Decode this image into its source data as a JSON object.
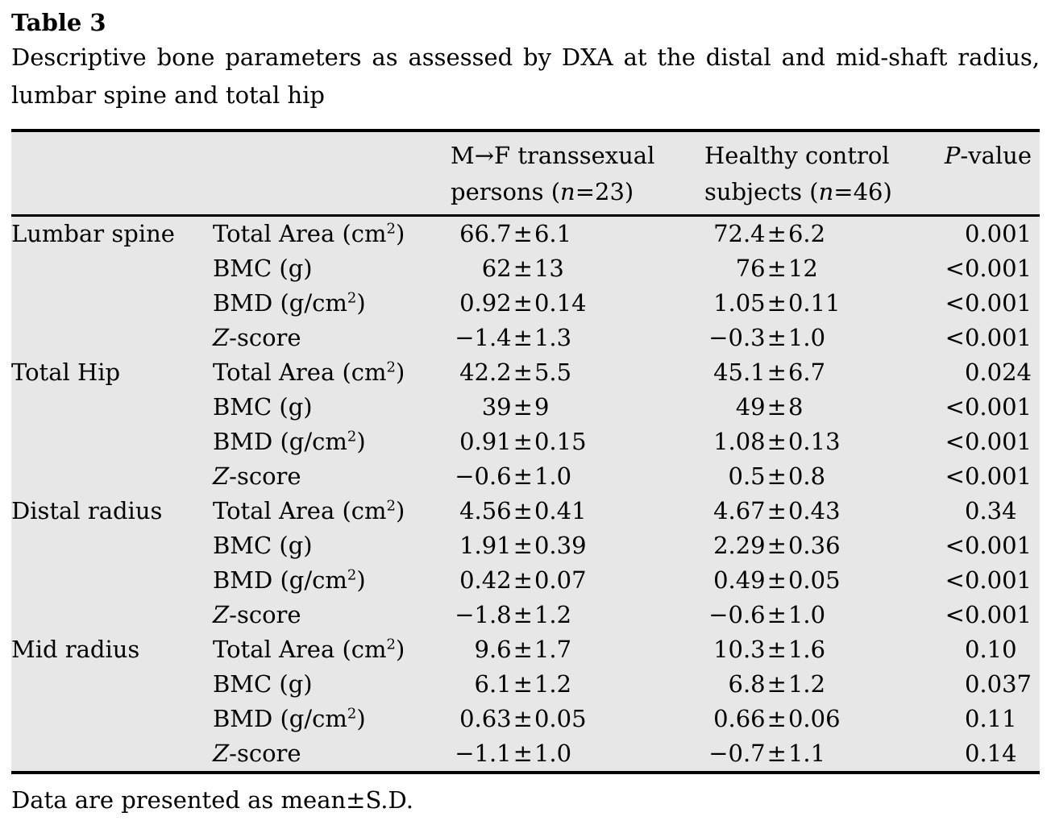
{
  "title": "Table 3",
  "caption": "Descriptive bone parameters as assessed by DXA at the distal and mid-shaft radius, lumbar spine and total hip",
  "footnote": "Data are presented as mean±S.D.",
  "header": {
    "col_mf": {
      "line1": "M→F transsexual",
      "line2_pre": "persons (",
      "line2_n": "n",
      "line2_post": "=23)"
    },
    "col_ctrl": {
      "line1": "Healthy control",
      "line2_pre": "subjects (",
      "line2_n": "n",
      "line2_post": "=46)"
    },
    "col_p": {
      "italic": "P",
      "rest": "-value"
    }
  },
  "rows": [
    {
      "region": "Lumbar spine",
      "param": "Total Area (cm²)",
      "mf": "66.7±6.1",
      "ctrl": "72.4±6.2",
      "p": "0.001"
    },
    {
      "region": "",
      "param": "BMC (g)",
      "mf": "62±13",
      "ctrl": "76±12",
      "p": "<0.001"
    },
    {
      "region": "",
      "param": "BMD (g/cm²)",
      "mf": "0.92±0.14",
      "ctrl": "1.05±0.11",
      "p": "<0.001"
    },
    {
      "region": "",
      "param": "Z-score",
      "mf": "−1.4±1.3",
      "ctrl": "−0.3±1.0",
      "p": "<0.001"
    },
    {
      "region": "Total Hip",
      "param": "Total Area (cm²)",
      "mf": "42.2±5.5",
      "ctrl": "45.1±6.7",
      "p": "0.024"
    },
    {
      "region": "",
      "param": "BMC (g)",
      "mf": "39±9",
      "ctrl": "49±8",
      "p": "<0.001"
    },
    {
      "region": "",
      "param": "BMD (g/cm²)",
      "mf": "0.91±0.15",
      "ctrl": "1.08±0.13",
      "p": "<0.001"
    },
    {
      "region": "",
      "param": "Z-score",
      "mf": "−0.6±1.0",
      "ctrl": "0.5±0.8",
      "p": "<0.001"
    },
    {
      "region": "Distal radius",
      "param": "Total Area (cm²)",
      "mf": "4.56±0.41",
      "ctrl": "4.67±0.43",
      "p": "0.34"
    },
    {
      "region": "",
      "param": "BMC (g)",
      "mf": "1.91±0.39",
      "ctrl": "2.29±0.36",
      "p": "<0.001"
    },
    {
      "region": "",
      "param": "BMD (g/cm²)",
      "mf": "0.42±0.07",
      "ctrl": "0.49±0.05",
      "p": "<0.001"
    },
    {
      "region": "",
      "param": "Z-score",
      "mf": "−1.8±1.2",
      "ctrl": "−0.6±1.0",
      "p": "<0.001"
    },
    {
      "region": "Mid radius",
      "param": "Total Area (cm²)",
      "mf": "9.6±1.7",
      "ctrl": "10.3±1.6",
      "p": "0.10"
    },
    {
      "region": "",
      "param": "BMC (g)",
      "mf": "6.1±1.2",
      "ctrl": "6.8±1.2",
      "p": "0.037"
    },
    {
      "region": "",
      "param": "BMD (g/cm²)",
      "mf": "0.63±0.05",
      "ctrl": "0.66±0.06",
      "p": "0.11"
    },
    {
      "region": "",
      "param": "Z-score",
      "mf": "−1.1±1.0",
      "ctrl": "−0.7±1.1",
      "p": "0.14"
    }
  ],
  "colors": {
    "table_bg": "#e7e7e7",
    "rule": "#000000",
    "text": "#000000",
    "page_bg": "#ffffff"
  }
}
